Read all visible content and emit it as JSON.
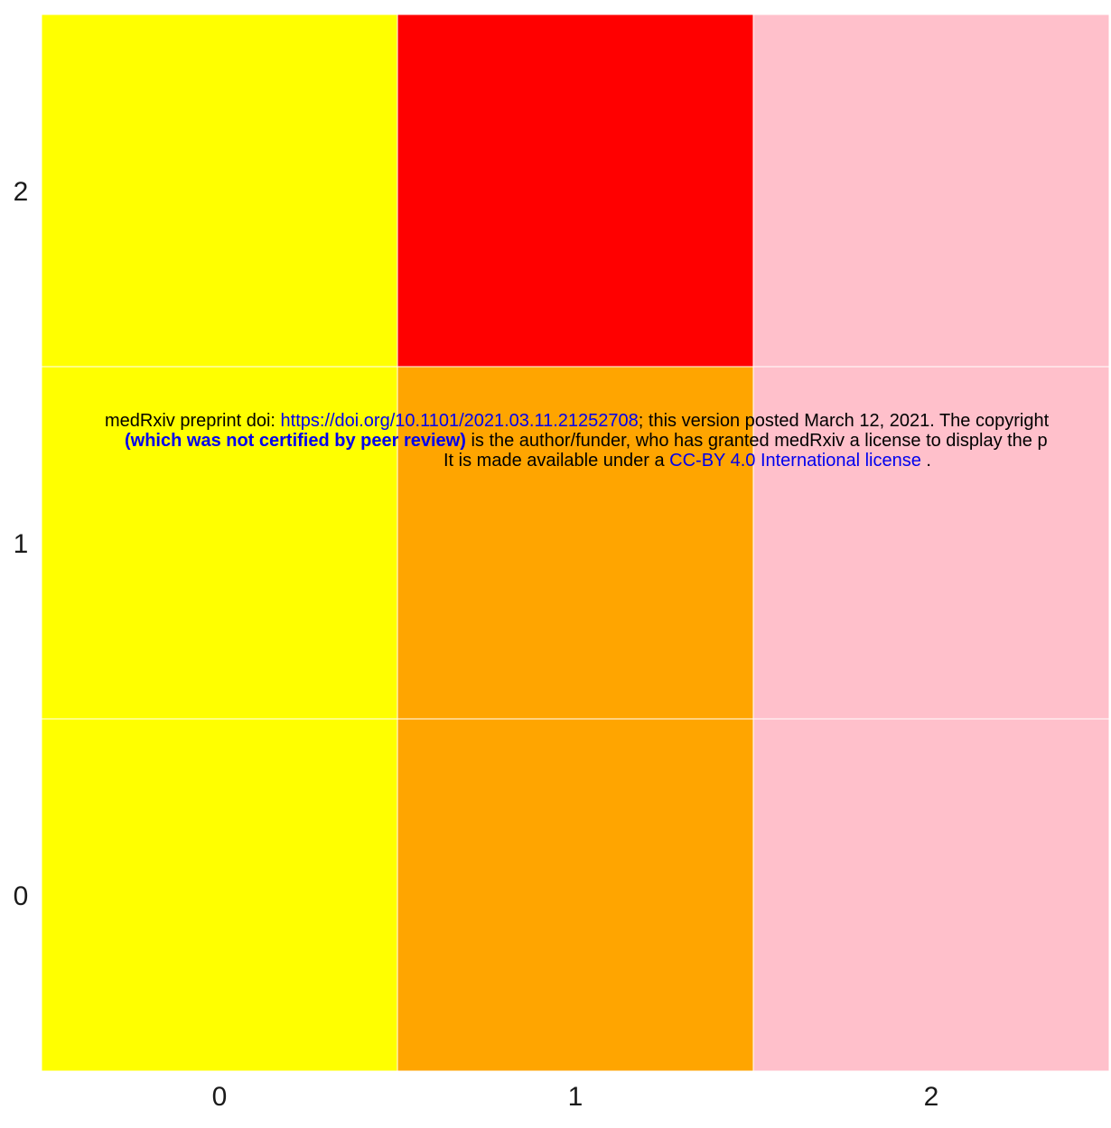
{
  "chart_data": {
    "type": "heatmap",
    "x_categories": [
      "0",
      "1",
      "2"
    ],
    "y_categories": [
      "0",
      "1",
      "2"
    ],
    "cells": [
      {
        "x": "0",
        "y": "0",
        "color": "#ffff00"
      },
      {
        "x": "1",
        "y": "0",
        "color": "#ffa500"
      },
      {
        "x": "2",
        "y": "0",
        "color": "#ffc0cb"
      },
      {
        "x": "0",
        "y": "1",
        "color": "#ffff00"
      },
      {
        "x": "1",
        "y": "1",
        "color": "#ffa500"
      },
      {
        "x": "2",
        "y": "1",
        "color": "#ffc0cb"
      },
      {
        "x": "0",
        "y": "2",
        "color": "#ffff00"
      },
      {
        "x": "1",
        "y": "2",
        "color": "#ff0000"
      },
      {
        "x": "2",
        "y": "2",
        "color": "#ffc0cb"
      }
    ],
    "title": "",
    "xlabel": "",
    "ylabel": "",
    "grid": false,
    "legend": "none",
    "cell_border_color": "#ffffff"
  },
  "watermark": {
    "line1_prefix": "medRxiv preprint doi: ",
    "line1_link": "https://doi.org/10.1101/2021.03.11.21252708",
    "line1_suffix": "; this version posted March 12, 2021. The copyright",
    "line2_bold": "(which was not certified by peer review)",
    "line2_suffix": " is the author/funder, who has granted medRxiv a license to display the p",
    "line3_prefix": "It is made available under a ",
    "line3_link": "CC-BY 4.0 International license",
    "line3_suffix": " ."
  }
}
